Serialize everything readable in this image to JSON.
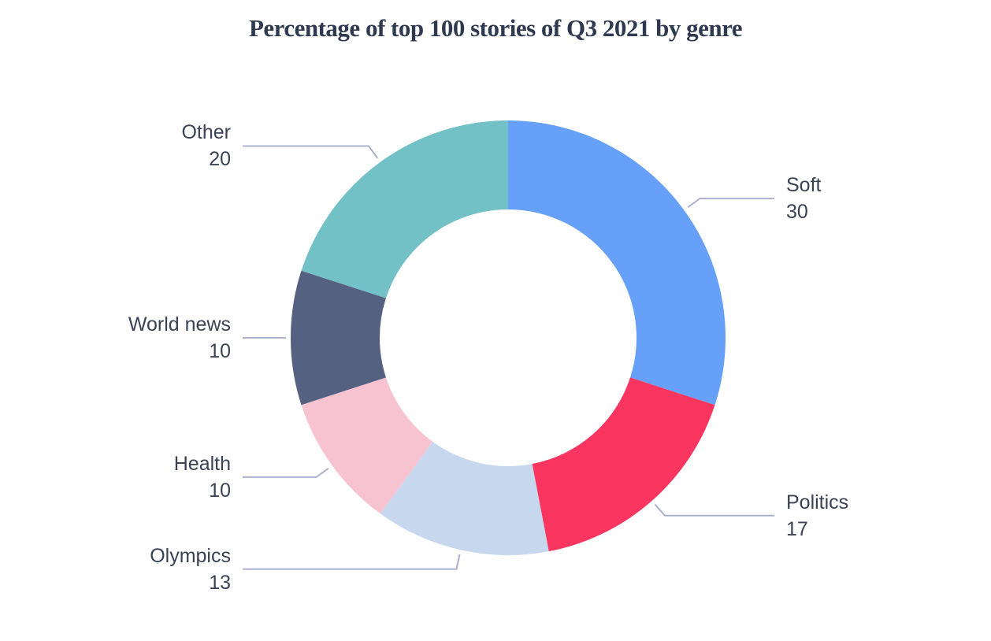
{
  "chart_data": {
    "type": "pie",
    "subtype": "donut",
    "title": "Percentage of top 100 stories of Q3 2021 by genre",
    "total": 100,
    "direction": "clockwise",
    "start_angle_deg": 0,
    "legend_position": "callout-labels",
    "background_color": "#FFFFFF",
    "title_color": "#2F3A50",
    "label_text_color": "#3B4254",
    "leader_line_color": "#ABB0CC",
    "segments": [
      {
        "label": "Soft",
        "value": 30,
        "color": "#66A0F8",
        "side": "right"
      },
      {
        "label": "Politics",
        "value": 17,
        "color": "#FA3560",
        "side": "right"
      },
      {
        "label": "Olympics",
        "value": 13,
        "color": "#C7D8EE",
        "side": "left"
      },
      {
        "label": "Health",
        "value": 10,
        "color": "#F8C3D0",
        "side": "left"
      },
      {
        "label": "World news",
        "value": 10,
        "color": "#556181",
        "side": "left"
      },
      {
        "label": "Other",
        "value": 20,
        "color": "#72C1C6",
        "side": "left"
      }
    ]
  }
}
